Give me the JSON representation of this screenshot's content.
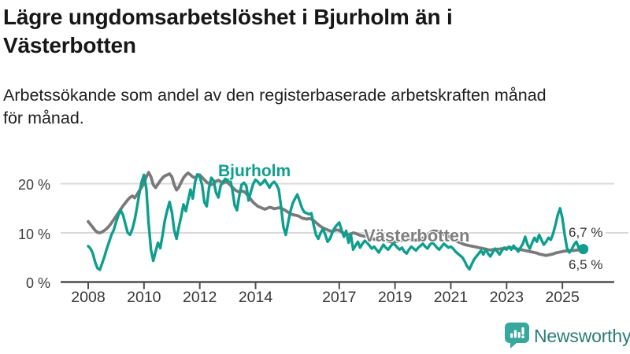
{
  "title_line1": "Lägre ungdomsarbetslöshet i Bjurholm än i",
  "title_line2": "Västerbotten",
  "subtitle_line1": "Arbetssökande som andel av den registerbaserade arbetskraften månad",
  "subtitle_line2": "för månad.",
  "footer": {
    "logo_text": "Newsworthy"
  },
  "colors": {
    "bjurholm": "#0e9e8d",
    "vasterbotten": "#7a7a7a",
    "gridline": "#d9d9d9",
    "axis": "#4f4f4f",
    "logo_teal": "#38a79d",
    "logo_text": "#2a7d77"
  },
  "chart_data": {
    "type": "line",
    "title": "Lägre ungdomsarbetslöshet i Bjurholm än i Västerbotten",
    "subtitle": "Arbetssökande som andel av den registerbaserade arbetskraften månad för månad.",
    "x_unit": "month",
    "x_range": {
      "start_year": 2008,
      "start_month": 1,
      "months": 214
    },
    "ylim": [
      0,
      24
    ],
    "grid": "horizontal",
    "legend_position": "inline-labels",
    "yticks": [
      {
        "label": "0 %",
        "value": 0
      },
      {
        "label": "10 %",
        "value": 10
      },
      {
        "label": "20 %",
        "value": 20
      }
    ],
    "xticks": [
      {
        "label": "2008",
        "year": 2008
      },
      {
        "label": "2010",
        "year": 2010
      },
      {
        "label": "2012",
        "year": 2012
      },
      {
        "label": "2014",
        "year": 2014
      },
      {
        "label": "2017",
        "year": 2017
      },
      {
        "label": "2019",
        "year": 2019
      },
      {
        "label": "2021",
        "year": 2021
      },
      {
        "label": "2023",
        "year": 2023
      },
      {
        "label": "2025",
        "year": 2025
      }
    ],
    "series": [
      {
        "name": "Bjurholm",
        "color": "#0e9e8d",
        "end_label": "6,7 %",
        "end_value": 6.7,
        "end_dot": true,
        "stroke_width": 3.4,
        "values": [
          7.3,
          6.8,
          5.8,
          4.0,
          2.8,
          2.5,
          3.8,
          5.2,
          6.8,
          8.2,
          9.6,
          10.6,
          12.2,
          13.6,
          14.6,
          13.6,
          11.8,
          10.0,
          9.6,
          10.8,
          12.6,
          15.2,
          18.0,
          20.4,
          21.8,
          19.0,
          12.0,
          6.6,
          4.3,
          6.2,
          8.0,
          6.9,
          9.6,
          12.6,
          14.6,
          16.3,
          14.2,
          10.6,
          8.8,
          11.2,
          13.4,
          15.8,
          14.4,
          16.6,
          18.8,
          17.0,
          20.4,
          21.9,
          21.4,
          19.8,
          16.2,
          15.4,
          19.2,
          21.2,
          20.6,
          18.2,
          17.2,
          19.6,
          20.4,
          21.0,
          20.6,
          21.0,
          18.8,
          15.6,
          14.6,
          17.6,
          19.8,
          20.2,
          19.6,
          16.6,
          18.4,
          20.0,
          20.8,
          20.4,
          19.8,
          20.2,
          20.8,
          20.0,
          19.2,
          20.0,
          20.4,
          19.8,
          18.8,
          15.2,
          11.2,
          9.6,
          12.0,
          14.4,
          16.0,
          17.0,
          17.8,
          16.4,
          15.0,
          14.2,
          14.0,
          13.8,
          14.0,
          11.6,
          9.6,
          8.8,
          10.0,
          10.8,
          9.6,
          8.2,
          8.8,
          10.0,
          11.0,
          11.6,
          12.1,
          10.6,
          9.2,
          10.4,
          8.0,
          9.6,
          6.6,
          7.4,
          8.2,
          7.0,
          7.8,
          8.4,
          8.0,
          7.4,
          6.8,
          7.2,
          6.6,
          6.0,
          6.8,
          7.6,
          7.0,
          6.6,
          7.2,
          7.8,
          7.6,
          7.0,
          6.6,
          7.0,
          6.2,
          5.8,
          6.6,
          7.2,
          6.8,
          6.4,
          7.0,
          7.4,
          7.8,
          7.2,
          6.8,
          7.6,
          8.0,
          7.6,
          7.0,
          6.6,
          7.2,
          7.8,
          7.4,
          7.0,
          7.2,
          6.8,
          6.2,
          5.8,
          5.4,
          5.0,
          4.2,
          3.2,
          2.6,
          3.6,
          4.6,
          5.2,
          5.8,
          6.4,
          5.6,
          6.6,
          5.8,
          5.2,
          6.0,
          6.8,
          6.2,
          5.6,
          6.4,
          7.0,
          6.6,
          7.2,
          6.6,
          7.4,
          6.8,
          6.2,
          7.0,
          7.8,
          9.2,
          7.6,
          6.8,
          8.0,
          9.0,
          8.2,
          9.6,
          8.6,
          7.6,
          8.2,
          9.0,
          8.6,
          9.8,
          11.6,
          13.6,
          15.0,
          13.0,
          9.6,
          6.9,
          6.0,
          6.6,
          7.6,
          8.2,
          7.0,
          6.5,
          6.7
        ]
      },
      {
        "name": "Västerbotten",
        "color": "#7a7a7a",
        "end_label": "6,5 %",
        "end_value": 6.5,
        "end_dot": false,
        "stroke_width": 3.8,
        "values": [
          12.3,
          11.7,
          11.1,
          10.5,
          10.1,
          10.0,
          10.2,
          10.5,
          10.9,
          11.4,
          12.0,
          12.7,
          13.4,
          14.1,
          14.8,
          15.5,
          16.1,
          16.7,
          17.2,
          17.5,
          17.1,
          17.8,
          18.6,
          19.3,
          20.1,
          21.4,
          22.3,
          21.4,
          19.8,
          19.2,
          19.9,
          20.6,
          21.2,
          21.6,
          21.8,
          22.0,
          21.4,
          19.8,
          18.7,
          19.3,
          20.3,
          21.2,
          21.8,
          22.2,
          21.8,
          21.4,
          21.2,
          21.6,
          21.8,
          21.3,
          20.8,
          20.3,
          20.0,
          19.8,
          20.1,
          20.5,
          20.7,
          20.4,
          20.1,
          20.4,
          20.2,
          19.8,
          19.3,
          18.8,
          18.5,
          18.3,
          18.5,
          18.4,
          18.0,
          17.4,
          16.8,
          16.2,
          15.8,
          15.4,
          15.2,
          15.0,
          14.8,
          15.0,
          15.2,
          15.1,
          14.9,
          15.0,
          15.1,
          15.0,
          14.8,
          14.5,
          14.2,
          13.9,
          13.7,
          13.6,
          13.5,
          13.3,
          13.0,
          12.9,
          12.8,
          12.9,
          12.8,
          12.5,
          12.1,
          11.7,
          11.3,
          11.0,
          10.8,
          10.6,
          10.4,
          10.3,
          10.5,
          10.6,
          10.5,
          10.2,
          9.9,
          9.7,
          9.6,
          9.8,
          10.0,
          9.9,
          9.7,
          9.5,
          9.4,
          9.3,
          9.2,
          9.0,
          8.9,
          8.7,
          8.6,
          8.5,
          8.6,
          8.7,
          8.5,
          8.3,
          8.2,
          8.1,
          8.2,
          8.3,
          8.4,
          8.4,
          8.5,
          8.6,
          8.7,
          8.6,
          8.5,
          8.5,
          8.6,
          8.7,
          8.9,
          9.2,
          9.6,
          10.0,
          10.3,
          10.4,
          10.3,
          10.1,
          9.9,
          9.7,
          9.5,
          9.3,
          9.0,
          8.7,
          8.4,
          8.2,
          8.0,
          7.8,
          7.6,
          7.5,
          7.4,
          7.3,
          7.2,
          7.1,
          7.0,
          6.9,
          6.8,
          6.7,
          6.6,
          6.5,
          6.6,
          6.6,
          6.7,
          6.7,
          6.8,
          6.8,
          6.9,
          7.0,
          7.0,
          6.9,
          6.8,
          6.7,
          6.6,
          6.5,
          6.4,
          6.3,
          6.2,
          6.1,
          6.0,
          5.9,
          5.7,
          5.6,
          5.5,
          5.4,
          5.5,
          5.6,
          5.7,
          5.9,
          6.0,
          6.1,
          6.2,
          6.3,
          6.3,
          6.4,
          6.4,
          6.4,
          6.5,
          6.5,
          6.5,
          6.5
        ]
      }
    ]
  }
}
